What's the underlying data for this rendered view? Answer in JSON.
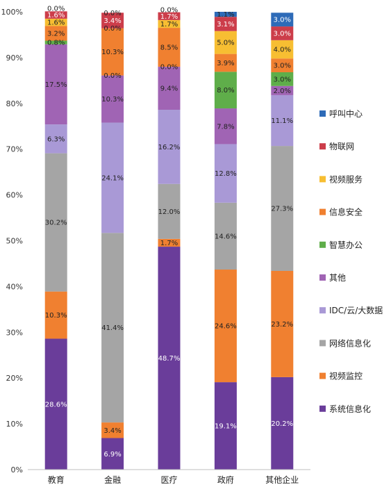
{
  "chart_data": {
    "type": "bar",
    "stacked": true,
    "categories": [
      "教育",
      "金融",
      "医疗",
      "政府",
      "其他企业"
    ],
    "ylim": [
      0,
      100
    ],
    "ytick_labels": [
      "0%",
      "10%",
      "20%",
      "30%",
      "40%",
      "50%",
      "60%",
      "70%",
      "80%",
      "90%",
      "100%"
    ],
    "grid": false,
    "legend_position": "right",
    "series": [
      {
        "name": "系统信息化",
        "color": "#6a3d9a",
        "values": [
          28.6,
          6.9,
          48.7,
          19.1,
          20.2
        ],
        "labels": [
          "28.6%",
          "6.9%",
          "48.7%",
          "19.1%",
          "20.2%"
        ]
      },
      {
        "name": "视频监控",
        "color": "#f08030",
        "values": [
          10.3,
          3.4,
          1.7,
          24.6,
          23.2
        ],
        "labels": [
          "10.3%",
          "3.4%",
          "1.7%",
          "24.6%",
          "23.2%"
        ]
      },
      {
        "name": "网络信息化",
        "color": "#a5a5a5",
        "values": [
          30.2,
          41.4,
          12.0,
          14.6,
          27.3
        ],
        "labels": [
          "30.2%",
          "41.4%",
          "12.0%",
          "14.6%",
          "27.3%"
        ]
      },
      {
        "name": "IDC/云/大数据",
        "color": "#a999d6",
        "values": [
          6.3,
          24.1,
          16.2,
          12.8,
          11.1
        ],
        "labels": [
          "6.3%",
          "24.1%",
          "16.2%",
          "12.8%",
          "11.1%"
        ]
      },
      {
        "name": "其他",
        "color": "#a064b4",
        "values": [
          17.5,
          10.3,
          9.4,
          7.8,
          2.0
        ],
        "labels": [
          "17.5%",
          "10.3%",
          "9.4%",
          "7.8%",
          "2.0%"
        ]
      },
      {
        "name": "智慧办公",
        "color": "#5fae4a",
        "values": [
          0.8,
          0.0,
          0.0,
          8.0,
          3.0
        ],
        "labels": [
          "0.8%",
          "0.0%",
          "0.0%",
          "8.0%",
          "3.0%"
        ]
      },
      {
        "name": "信息安全",
        "color": "#f08030",
        "values": [
          3.2,
          10.3,
          8.5,
          3.9,
          3.0
        ],
        "labels": [
          "3.2%",
          "10.3%",
          "8.5%",
          "3.9%",
          "3.0%"
        ]
      },
      {
        "name": "视频服务",
        "color": "#f7be32",
        "values": [
          1.6,
          0.0,
          1.7,
          5.0,
          4.0
        ],
        "labels": [
          "1.6%",
          "0.0%",
          "1.7%",
          "5.0%",
          "4.0%"
        ]
      },
      {
        "name": "物联网",
        "color": "#cc3d4a",
        "values": [
          1.6,
          3.4,
          1.7,
          3.1,
          3.0
        ],
        "labels": [
          "1.6%",
          "3.4%",
          "1.7%",
          "3.1%",
          "3.0%"
        ]
      },
      {
        "name": "呼叫中心",
        "color": "#2e6bb8",
        "values": [
          0.0,
          0.0,
          0.0,
          1.1,
          3.0
        ],
        "labels": [
          "0.0%",
          "0.0%",
          "0.0%",
          "1.1%",
          "3.0%"
        ]
      }
    ]
  }
}
